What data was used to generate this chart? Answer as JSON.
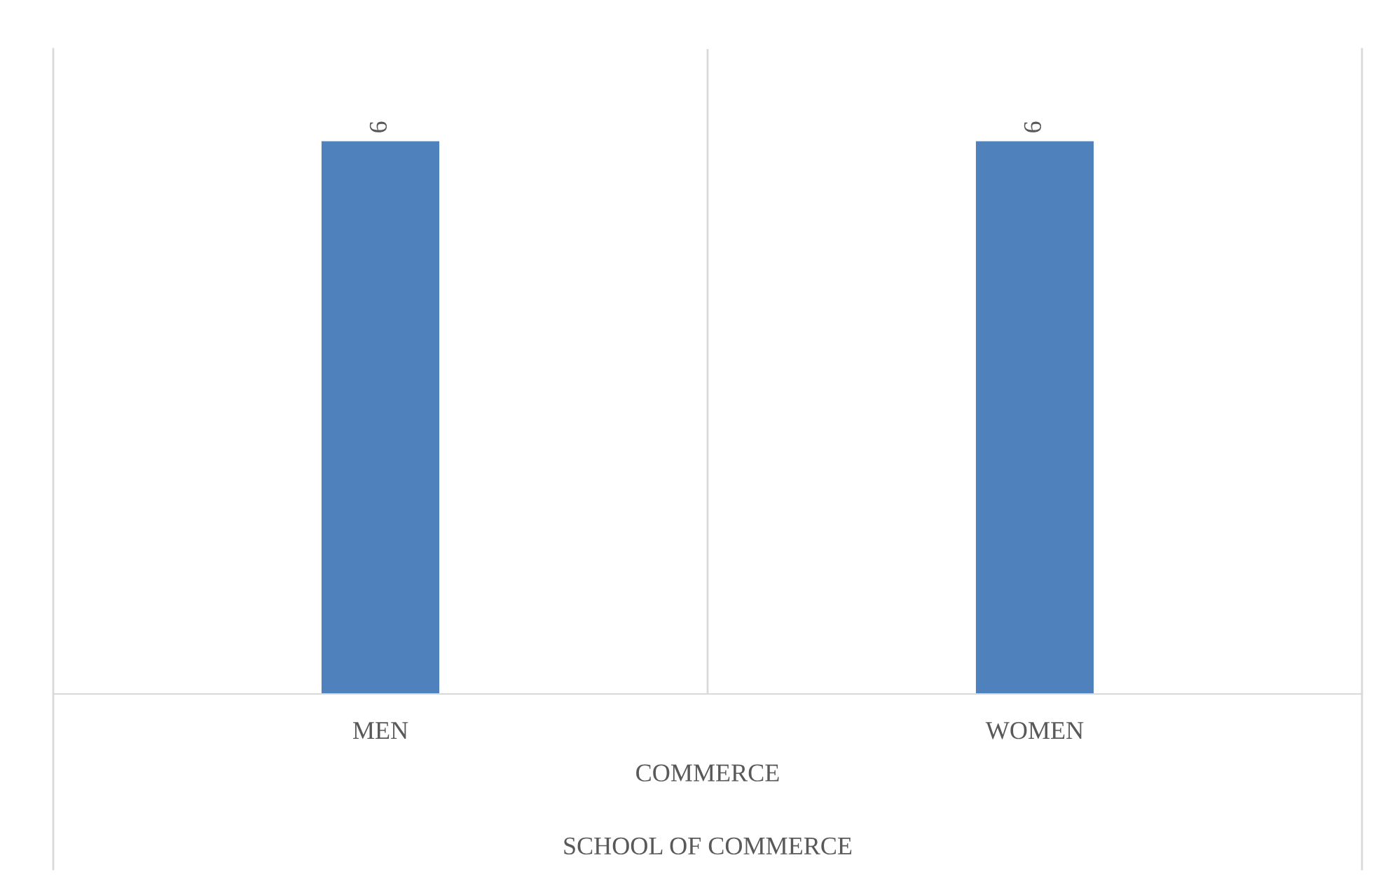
{
  "chart_data": {
    "type": "bar",
    "categories": [
      "MEN",
      "WOMEN"
    ],
    "values": [
      6,
      6
    ],
    "color": "#4f81bd",
    "data_labels": true,
    "ylim": [
      0,
      7
    ],
    "tick_labels": "x",
    "xlabel": "COMMERCE",
    "annotations": [
      "SCHOOL OF COMMERCE"
    ],
    "grid": false,
    "legend": false
  }
}
